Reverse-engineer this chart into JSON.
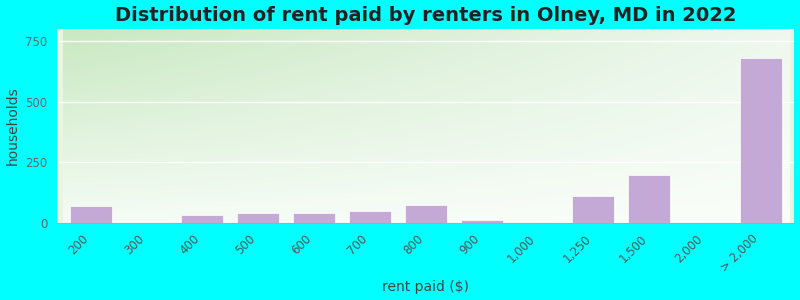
{
  "title": "Distribution of rent paid by renters in Olney, MD in 2022",
  "xlabel": "rent paid ($)",
  "ylabel": "households",
  "categories": [
    "200",
    "300",
    "400",
    "500",
    "600",
    "700",
    "800",
    "900",
    "1,000",
    "1,250",
    "1,500",
    "2,000",
    "> 2,000"
  ],
  "values": [
    70,
    0,
    30,
    40,
    40,
    50,
    75,
    10,
    0,
    110,
    195,
    0,
    680
  ],
  "bar_color": "#c4a8d5",
  "bar_edge_color": "#c4a8d5",
  "bg_color": "#00ffff",
  "grad_color_topleft": "#c8e8c0",
  "grad_color_topright": "#e8f5e8",
  "grad_color_bottom": "#f8fdf8",
  "title_fontsize": 14,
  "axis_label_fontsize": 10,
  "tick_fontsize": 8.5,
  "ylim": [
    0,
    800
  ],
  "yticks": [
    0,
    250,
    500,
    750
  ],
  "grid_color": "#e0e8d8"
}
